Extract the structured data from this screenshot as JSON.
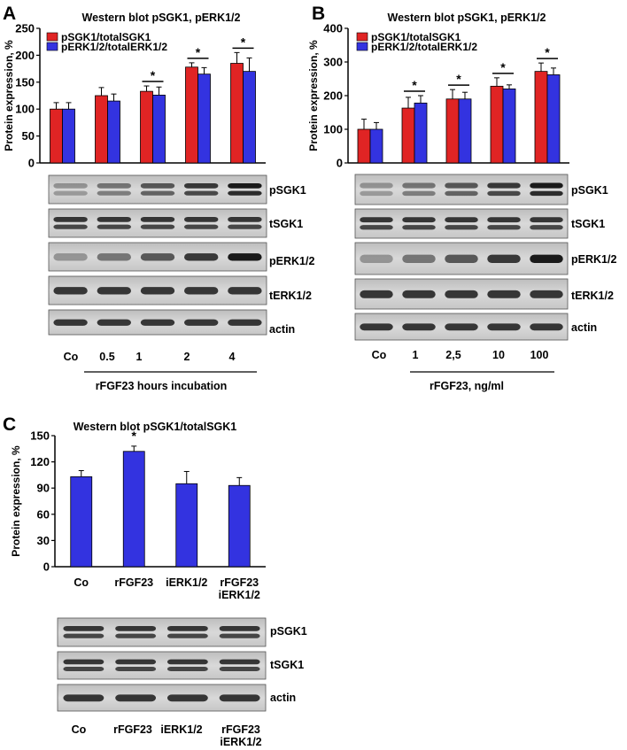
{
  "colors": {
    "series1": "#e02424",
    "series2": "#3333e0",
    "axis": "#000000",
    "band": "#1a1a1a"
  },
  "chart_data": [
    {
      "panel_label": "A",
      "type": "bar",
      "title": "Western blot pSGK1, pERK1/2",
      "ylabel": "Protein expression, %",
      "xlabel": "rFGF23 hours incubation",
      "ylim": [
        0,
        250
      ],
      "yticks": [
        0,
        50,
        100,
        150,
        200,
        250
      ],
      "categories": [
        "Co",
        "0.5",
        "1",
        "2",
        "4"
      ],
      "series": [
        {
          "name": "pSGK1/totalSGK1",
          "values": [
            100,
            125,
            133,
            178,
            185
          ],
          "errors": [
            12,
            15,
            10,
            8,
            20
          ]
        },
        {
          "name": "pERK1/2/totalERK1/2",
          "values": [
            100,
            115,
            126,
            165,
            170
          ],
          "errors": [
            12,
            13,
            15,
            12,
            25
          ]
        }
      ],
      "significance": [
        "",
        "",
        "*",
        "*",
        "*"
      ],
      "blots": [
        "pSGK1",
        "tSGK1",
        "pERK1/2",
        "tERK1/2",
        "actin"
      ]
    },
    {
      "panel_label": "B",
      "type": "bar",
      "title": "Western blot pSGK1, pERK1/2",
      "ylabel": "Protein expression, %",
      "xlabel": "rFGF23, ng/ml",
      "ylim": [
        0,
        400
      ],
      "yticks": [
        0,
        100,
        200,
        300,
        400
      ],
      "categories": [
        "Co",
        "1",
        "2,5",
        "10",
        "100"
      ],
      "series": [
        {
          "name": "pSGK1/totalSGK1",
          "values": [
            100,
            163,
            190,
            228,
            272
          ],
          "errors": [
            30,
            32,
            28,
            25,
            25
          ]
        },
        {
          "name": "pERK1/2/totalERK1/2",
          "values": [
            100,
            178,
            190,
            220,
            262
          ],
          "errors": [
            20,
            22,
            20,
            12,
            20
          ]
        }
      ],
      "significance": [
        "",
        "*",
        "*",
        "*",
        "*"
      ],
      "blots": [
        "pSGK1",
        "tSGK1",
        "pERK1/2",
        "tERK1/2",
        "actin"
      ]
    },
    {
      "panel_label": "C",
      "type": "bar",
      "title": "Western blot pSGK1/totalSGK1",
      "ylabel": "Protein expression, %",
      "xlabel": "",
      "ylim": [
        0,
        150
      ],
      "yticks": [
        0,
        30,
        60,
        90,
        120,
        150
      ],
      "categories": [
        "Co",
        "rFGF23",
        "iERK1/2",
        "rFGF23\niERK1/2"
      ],
      "series": [
        {
          "name": "",
          "values": [
            103,
            132,
            95,
            93
          ],
          "errors": [
            7,
            6,
            14,
            9
          ]
        }
      ],
      "significance": [
        "",
        "*",
        "",
        ""
      ],
      "blots": [
        "pSGK1",
        "tSGK1",
        "actin"
      ],
      "blot_lane_labels": [
        "Co",
        "rFGF23",
        "iERK1/2",
        "rFGF23\niERK1/2"
      ]
    }
  ]
}
